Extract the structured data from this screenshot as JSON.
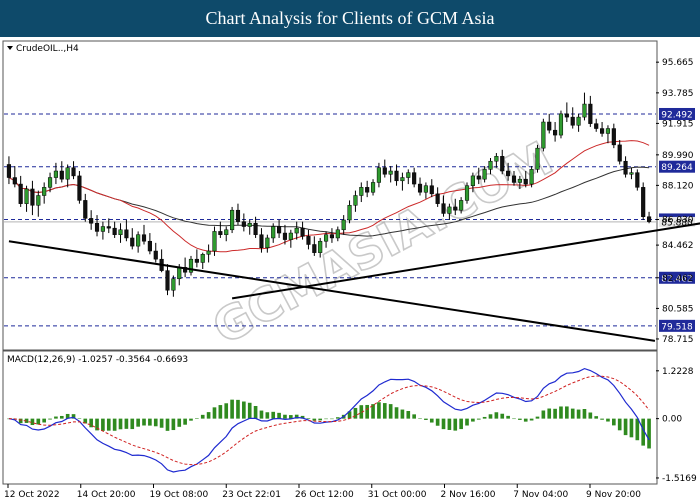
{
  "header": {
    "title": "Chart Analysis for Clients of GCM Asia"
  },
  "watermark": {
    "text": "GCMASIA.COM"
  },
  "chart_data": {
    "type": "candlestick",
    "symbol_label": "CrudeOIL..,H4",
    "price_axis": {
      "ticks": [
        "95.665",
        "93.785",
        "91.915",
        "89.990",
        "88.120",
        "86.030",
        "84.462",
        "82.462",
        "80.585",
        "78.715"
      ],
      "ylim": [
        78.1,
        96.9
      ]
    },
    "levels": [
      {
        "value": 92.492,
        "label": "92.492",
        "color": "#1f2a9a"
      },
      {
        "value": 89.264,
        "label": "89.264",
        "color": "#1f2a9a"
      },
      {
        "value": 86.033,
        "label": "86.033",
        "color": "#1f2a9a"
      },
      {
        "value": 82.462,
        "label": "82.462",
        "color": "#1f2a9a"
      },
      {
        "value": 79.518,
        "label": "79.518",
        "color": "#1f2a9a"
      }
    ],
    "current_price": {
      "value": 85.88,
      "label": "85.880"
    },
    "x_labels": [
      "12 Oct 2022",
      "14 Oct 20:00",
      "19 Oct 08:00",
      "23 Oct 22:01",
      "26 Oct 12:00",
      "31 Oct 00:00",
      "2 Nov 16:00",
      "7 Nov 04:00",
      "9 Nov 20:00"
    ],
    "trendlines": [
      {
        "name": "support-trendline",
        "from": [
          38,
          81.2
        ],
        "to": [
          196,
          90.3
        ]
      },
      {
        "name": "resistance-trendline",
        "from": [
          0,
          84.7
        ],
        "to": [
          110,
          78.6
        ]
      }
    ],
    "candles": [
      [
        89.4,
        89.9,
        88.2,
        88.6
      ],
      [
        88.6,
        89.3,
        88.0,
        88.2
      ],
      [
        88.2,
        88.7,
        86.8,
        87.0
      ],
      [
        87.0,
        88.1,
        86.5,
        87.9
      ],
      [
        87.9,
        88.4,
        86.3,
        86.9
      ],
      [
        86.9,
        87.8,
        86.2,
        87.5
      ],
      [
        87.5,
        88.3,
        87.0,
        88.0
      ],
      [
        88.0,
        88.9,
        87.7,
        88.6
      ],
      [
        88.6,
        89.5,
        88.2,
        89.0
      ],
      [
        89.0,
        89.6,
        88.3,
        88.5
      ],
      [
        88.5,
        89.4,
        88.0,
        89.2
      ],
      [
        89.2,
        89.6,
        88.5,
        88.7
      ],
      [
        88.7,
        89.0,
        87.0,
        87.2
      ],
      [
        87.2,
        87.6,
        85.9,
        86.1
      ],
      [
        86.1,
        86.6,
        85.4,
        85.8
      ],
      [
        85.8,
        86.3,
        85.0,
        85.3
      ],
      [
        85.3,
        85.9,
        84.8,
        85.6
      ],
      [
        85.6,
        86.1,
        85.2,
        85.5
      ],
      [
        85.5,
        85.9,
        84.9,
        85.1
      ],
      [
        85.1,
        85.8,
        84.6,
        85.4
      ],
      [
        85.4,
        86.0,
        84.7,
        84.9
      ],
      [
        84.9,
        85.5,
        84.2,
        84.4
      ],
      [
        84.4,
        85.3,
        84.0,
        85.1
      ],
      [
        85.1,
        85.7,
        84.5,
        84.7
      ],
      [
        84.7,
        85.2,
        83.9,
        84.1
      ],
      [
        84.1,
        84.6,
        83.4,
        83.6
      ],
      [
        83.6,
        84.2,
        82.8,
        82.9
      ],
      [
        82.9,
        83.3,
        81.4,
        81.7
      ],
      [
        81.7,
        82.6,
        81.3,
        82.4
      ],
      [
        82.4,
        83.3,
        82.0,
        83.1
      ],
      [
        83.1,
        83.7,
        82.5,
        82.8
      ],
      [
        82.8,
        83.8,
        82.6,
        83.6
      ],
      [
        83.6,
        84.2,
        83.1,
        83.4
      ],
      [
        83.4,
        84.0,
        83.0,
        83.9
      ],
      [
        83.9,
        84.5,
        83.4,
        84.1
      ],
      [
        84.1,
        85.6,
        83.8,
        85.3
      ],
      [
        85.3,
        85.9,
        84.9,
        85.1
      ],
      [
        85.1,
        85.6,
        84.7,
        85.4
      ],
      [
        85.4,
        86.8,
        85.2,
        86.6
      ],
      [
        86.6,
        87.0,
        85.7,
        85.9
      ],
      [
        85.9,
        86.4,
        85.3,
        85.6
      ],
      [
        85.6,
        86.0,
        85.1,
        85.8
      ],
      [
        85.8,
        86.2,
        84.9,
        85.1
      ],
      [
        85.1,
        85.5,
        84.0,
        84.3
      ],
      [
        84.3,
        85.1,
        84.0,
        84.9
      ],
      [
        84.9,
        85.8,
        84.6,
        85.6
      ],
      [
        85.6,
        86.0,
        84.9,
        85.2
      ],
      [
        85.2,
        85.7,
        84.5,
        84.8
      ],
      [
        84.8,
        85.4,
        84.3,
        85.2
      ],
      [
        85.2,
        85.9,
        84.8,
        85.5
      ],
      [
        85.5,
        85.9,
        84.8,
        85.0
      ],
      [
        85.0,
        85.4,
        84.2,
        84.5
      ],
      [
        84.5,
        85.0,
        83.8,
        84.0
      ],
      [
        84.0,
        84.9,
        83.7,
        84.7
      ],
      [
        84.7,
        85.3,
        84.3,
        85.1
      ],
      [
        85.1,
        85.5,
        84.6,
        84.9
      ],
      [
        84.9,
        85.6,
        84.7,
        85.4
      ],
      [
        85.4,
        86.3,
        85.1,
        86.0
      ],
      [
        86.0,
        87.2,
        85.8,
        86.9
      ],
      [
        86.9,
        87.8,
        86.5,
        87.5
      ],
      [
        87.5,
        88.3,
        87.1,
        88.0
      ],
      [
        88.0,
        88.4,
        87.4,
        87.7
      ],
      [
        87.7,
        88.5,
        87.5,
        88.3
      ],
      [
        88.3,
        89.5,
        88.0,
        89.2
      ],
      [
        89.2,
        89.7,
        88.6,
        88.8
      ],
      [
        88.8,
        89.3,
        88.3,
        89.0
      ],
      [
        89.0,
        89.4,
        88.1,
        88.4
      ],
      [
        88.4,
        88.9,
        87.8,
        88.6
      ],
      [
        88.6,
        89.1,
        88.2,
        88.9
      ],
      [
        88.9,
        89.2,
        88.0,
        88.2
      ],
      [
        88.2,
        88.6,
        87.5,
        87.7
      ],
      [
        87.7,
        88.3,
        87.3,
        88.1
      ],
      [
        88.1,
        88.5,
        87.4,
        87.6
      ],
      [
        87.6,
        88.0,
        86.8,
        87.0
      ],
      [
        87.0,
        87.5,
        86.2,
        86.4
      ],
      [
        86.4,
        87.0,
        86.0,
        86.8
      ],
      [
        86.8,
        87.3,
        86.3,
        86.6
      ],
      [
        86.6,
        87.4,
        86.4,
        87.2
      ],
      [
        87.2,
        88.3,
        87.0,
        88.1
      ],
      [
        88.1,
        88.9,
        87.7,
        88.7
      ],
      [
        88.7,
        89.2,
        88.2,
        88.5
      ],
      [
        88.5,
        89.3,
        88.3,
        89.1
      ],
      [
        89.1,
        89.8,
        88.8,
        89.6
      ],
      [
        89.6,
        90.1,
        89.2,
        89.9
      ],
      [
        89.9,
        90.3,
        88.8,
        89.0
      ],
      [
        89.0,
        89.5,
        88.4,
        88.7
      ],
      [
        88.7,
        89.0,
        88.1,
        88.3
      ],
      [
        88.3,
        88.7,
        87.9,
        88.5
      ],
      [
        88.5,
        89.0,
        88.0,
        88.2
      ],
      [
        88.2,
        89.3,
        88.0,
        89.1
      ],
      [
        89.1,
        90.6,
        88.9,
        90.4
      ],
      [
        90.4,
        92.2,
        90.2,
        92.0
      ],
      [
        92.0,
        92.5,
        91.3,
        91.5
      ],
      [
        91.5,
        92.0,
        90.8,
        91.2
      ],
      [
        91.2,
        92.7,
        91.0,
        92.5
      ],
      [
        92.5,
        93.2,
        92.0,
        92.3
      ],
      [
        92.3,
        92.9,
        91.6,
        91.8
      ],
      [
        91.8,
        92.5,
        91.4,
        92.3
      ],
      [
        92.3,
        93.8,
        92.1,
        93.1
      ],
      [
        93.1,
        93.6,
        91.7,
        91.9
      ],
      [
        91.9,
        92.2,
        91.4,
        91.6
      ],
      [
        91.6,
        92.0,
        91.1,
        91.3
      ],
      [
        91.3,
        91.8,
        90.7,
        91.6
      ],
      [
        91.6,
        91.9,
        90.4,
        90.6
      ],
      [
        90.6,
        90.9,
        89.4,
        89.6
      ],
      [
        89.6,
        89.9,
        88.6,
        88.8
      ],
      [
        88.8,
        89.2,
        88.5,
        88.9
      ],
      [
        88.9,
        89.1,
        87.8,
        88.0
      ],
      [
        88.0,
        88.3,
        86.0,
        86.2
      ],
      [
        86.2,
        86.5,
        85.8,
        85.9
      ]
    ],
    "moving_averages": [
      {
        "name": "MA slow",
        "color": "#333333",
        "period": 50
      },
      {
        "name": "MA fast",
        "color": "#cc2a2a",
        "period": 20
      }
    ],
    "macd": {
      "label": "MACD(12,26,9) -1.0257 -0.3564 -0.6693",
      "ticks": [
        "1.2228",
        "0.00",
        "-1.5169"
      ],
      "ylim": [
        -1.62,
        1.32
      ],
      "line_color": "#1f2ad0",
      "signal_color": "#d02020",
      "hist_color": "#2f8a1f"
    }
  }
}
